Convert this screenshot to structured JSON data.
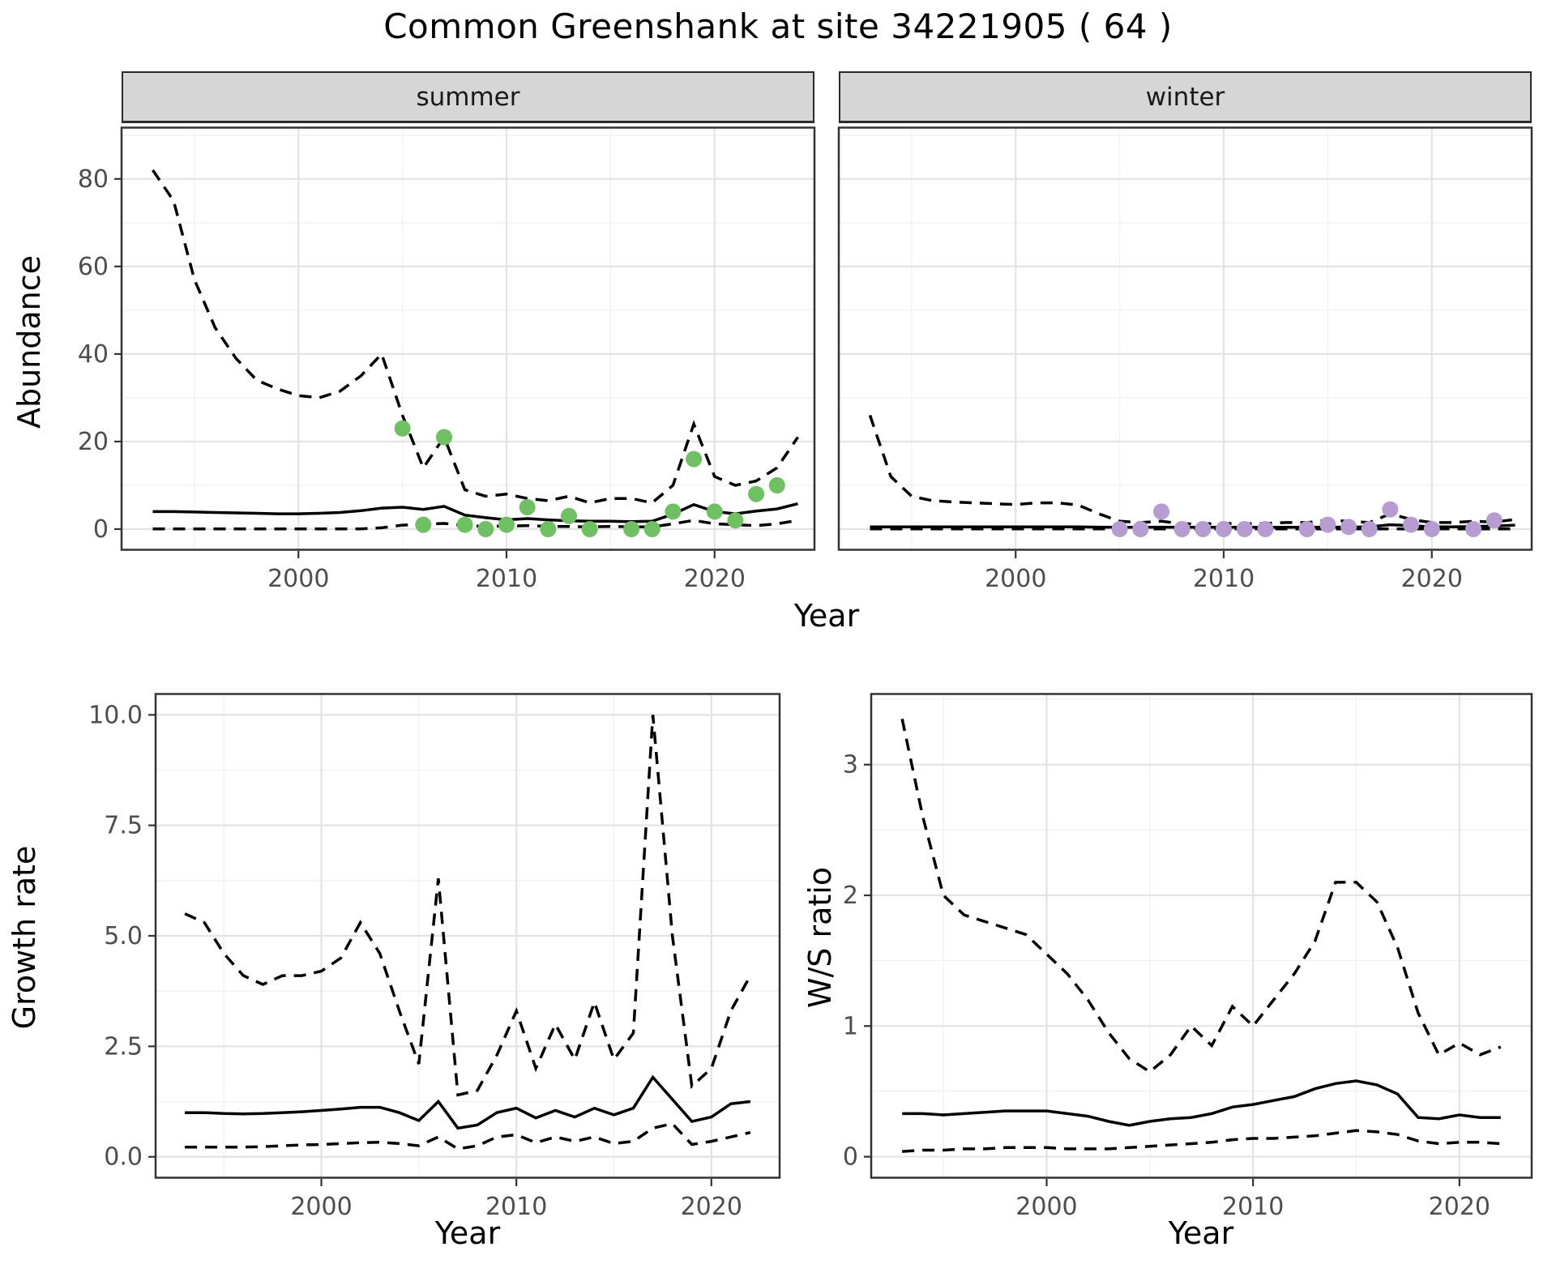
{
  "title": "Common Greenshank at site 34221905 ( 64 )",
  "colors": {
    "line": "#000000",
    "summer_points": "#6fbf63",
    "winter_points": "#b79cd1",
    "strip_bg": "#d6d6d6",
    "grid_major": "#e3e3e3",
    "grid_minor": "#f1f1f1",
    "tick_text": "#4d4d4d"
  },
  "chart_data": [
    {
      "id": "abundance-summer",
      "type": "line",
      "facet": "summer",
      "ylabel": "Abundance",
      "xlabel": "Year",
      "x_range": [
        1991.5,
        2024.8
      ],
      "y_range": [
        -5,
        92
      ],
      "x_ticks": [
        2000,
        2010,
        2020
      ],
      "x_tick_labels": [
        "2000",
        "2010",
        "2020"
      ],
      "x_minor": [
        1995,
        2005,
        2015
      ],
      "y_ticks": [
        0,
        20,
        40,
        60,
        80
      ],
      "y_tick_labels": [
        "0",
        "20",
        "40",
        "60",
        "80"
      ],
      "y_minor": [
        10,
        30,
        50,
        70,
        90
      ],
      "show_y_ticks": true,
      "years": [
        1993,
        1994,
        1995,
        1996,
        1997,
        1998,
        1999,
        2000,
        2001,
        2002,
        2003,
        2004,
        2005,
        2006,
        2007,
        2008,
        2009,
        2010,
        2011,
        2012,
        2013,
        2014,
        2015,
        2016,
        2017,
        2018,
        2019,
        2020,
        2021,
        2022,
        2023,
        2024
      ],
      "series": [
        {
          "name": "upper_95ci",
          "style": "dashed",
          "values": [
            82,
            75,
            57,
            46,
            39,
            34,
            32,
            30.5,
            30,
            31.5,
            35,
            40,
            26,
            14,
            21,
            9,
            7.5,
            8,
            7,
            6.5,
            7.5,
            6,
            7,
            7,
            6,
            10,
            24,
            12,
            10,
            11,
            14,
            21
          ]
        },
        {
          "name": "mean",
          "style": "solid",
          "values": [
            4,
            4,
            3.9,
            3.8,
            3.7,
            3.6,
            3.5,
            3.5,
            3.6,
            3.8,
            4.2,
            4.8,
            5,
            4.5,
            5.2,
            3.2,
            2.6,
            2.1,
            2.4,
            2.1,
            1.9,
            1.8,
            1.8,
            1.7,
            1.8,
            3.4,
            5.6,
            4,
            3.5,
            4.1,
            4.6,
            5.8
          ]
        },
        {
          "name": "lower_95ci",
          "style": "dashed",
          "values": [
            0.05,
            0.05,
            0.05,
            0.05,
            0.05,
            0.05,
            0.05,
            0.05,
            0.05,
            0.05,
            0.05,
            0.3,
            0.9,
            1.1,
            1.3,
            0.8,
            0.6,
            0.7,
            0.8,
            0.6,
            0.6,
            0.5,
            0.6,
            0.5,
            0.5,
            1.2,
            2,
            1.2,
            1,
            0.8,
            1.2,
            2
          ]
        }
      ],
      "points": {
        "name": "observed-counts-summer",
        "color": "#6fbf63",
        "data": [
          [
            2005,
            23
          ],
          [
            2006,
            1
          ],
          [
            2007,
            21
          ],
          [
            2008,
            1
          ],
          [
            2009,
            0
          ],
          [
            2010,
            1
          ],
          [
            2011,
            5
          ],
          [
            2012,
            0
          ],
          [
            2013,
            3
          ],
          [
            2014,
            0
          ],
          [
            2016,
            0
          ],
          [
            2017,
            0
          ],
          [
            2018,
            4
          ],
          [
            2019,
            16
          ],
          [
            2020,
            4
          ],
          [
            2021,
            2
          ],
          [
            2022,
            8
          ],
          [
            2023,
            10
          ]
        ]
      }
    },
    {
      "id": "abundance-winter",
      "type": "line",
      "facet": "winter",
      "ylabel": "Abundance",
      "xlabel": "Year",
      "x_range": [
        1991.5,
        2024.8
      ],
      "y_range": [
        -5,
        92
      ],
      "x_ticks": [
        2000,
        2010,
        2020
      ],
      "x_tick_labels": [
        "2000",
        "2010",
        "2020"
      ],
      "x_minor": [
        1995,
        2005,
        2015
      ],
      "y_ticks": [
        0,
        20,
        40,
        60,
        80
      ],
      "y_tick_labels": [
        "0",
        "20",
        "40",
        "60",
        "80"
      ],
      "y_minor": [
        10,
        30,
        50,
        70,
        90
      ],
      "show_y_ticks": false,
      "years": [
        1993,
        1994,
        1995,
        1996,
        1997,
        1998,
        1999,
        2000,
        2001,
        2002,
        2003,
        2004,
        2005,
        2006,
        2007,
        2008,
        2009,
        2010,
        2011,
        2012,
        2013,
        2014,
        2015,
        2016,
        2017,
        2018,
        2019,
        2020,
        2021,
        2022,
        2023,
        2024
      ],
      "series": [
        {
          "name": "upper_95ci",
          "style": "dashed",
          "values": [
            26,
            12,
            7.5,
            6.5,
            6.2,
            6,
            5.8,
            5.6,
            6,
            6,
            5.5,
            3.5,
            1.8,
            1.5,
            1.8,
            1.2,
            1.2,
            1.3,
            1.2,
            1.3,
            1.5,
            1.5,
            2,
            1.8,
            1.5,
            3.5,
            2.2,
            1.5,
            1.5,
            1.8,
            1.6,
            2.2
          ]
        },
        {
          "name": "mean",
          "style": "solid",
          "values": [
            0.5,
            0.5,
            0.5,
            0.5,
            0.5,
            0.5,
            0.5,
            0.5,
            0.5,
            0.5,
            0.5,
            0.45,
            0.4,
            0.4,
            0.45,
            0.4,
            0.4,
            0.4,
            0.4,
            0.4,
            0.4,
            0.4,
            0.45,
            0.45,
            0.5,
            1,
            0.8,
            0.5,
            0.5,
            0.6,
            0.7,
            0.9
          ]
        },
        {
          "name": "lower_95ci",
          "style": "dashed",
          "values": [
            0.05,
            0.05,
            0.05,
            0.05,
            0.05,
            0.05,
            0.05,
            0.05,
            0.05,
            0.05,
            0.05,
            0.05,
            0.05,
            0.05,
            0.05,
            0.05,
            0.05,
            0.05,
            0.05,
            0.05,
            0.05,
            0.05,
            0.05,
            0.05,
            0.05,
            0.05,
            0.05,
            0.05,
            0.05,
            0.05,
            0.05,
            0.05
          ]
        }
      ],
      "points": {
        "name": "observed-counts-winter",
        "color": "#b79cd1",
        "data": [
          [
            2005,
            0
          ],
          [
            2006,
            0
          ],
          [
            2007,
            4
          ],
          [
            2008,
            0
          ],
          [
            2009,
            0
          ],
          [
            2010,
            0
          ],
          [
            2011,
            0
          ],
          [
            2012,
            0
          ],
          [
            2014,
            0
          ],
          [
            2015,
            1
          ],
          [
            2016,
            0.5
          ],
          [
            2017,
            0
          ],
          [
            2018,
            4.5
          ],
          [
            2019,
            1
          ],
          [
            2020,
            0
          ],
          [
            2022,
            0
          ],
          [
            2023,
            2
          ]
        ]
      }
    },
    {
      "id": "growth-rate",
      "type": "line",
      "facet": null,
      "ylabel": "Growth rate",
      "xlabel": "Year",
      "x_range": [
        1991.5,
        2023.5
      ],
      "y_range": [
        -0.5,
        10.5
      ],
      "x_ticks": [
        2000,
        2010,
        2020
      ],
      "x_tick_labels": [
        "2000",
        "2010",
        "2020"
      ],
      "x_minor": [
        1995,
        2005,
        2015
      ],
      "y_ticks": [
        0,
        2.5,
        5,
        7.5,
        10
      ],
      "y_tick_labels": [
        "0.0",
        "2.5",
        "5.0",
        "7.5",
        "10.0"
      ],
      "y_minor": [
        1.25,
        3.75,
        6.25,
        8.75
      ],
      "show_y_ticks": true,
      "years": [
        1993,
        1994,
        1995,
        1996,
        1997,
        1998,
        1999,
        2000,
        2001,
        2002,
        2003,
        2004,
        2005,
        2006,
        2007,
        2008,
        2009,
        2010,
        2011,
        2012,
        2013,
        2014,
        2015,
        2016,
        2017,
        2018,
        2019,
        2020,
        2021,
        2022
      ],
      "series": [
        {
          "name": "upper_95ci",
          "style": "dashed",
          "values": [
            5.5,
            5.3,
            4.6,
            4.1,
            3.9,
            4.1,
            4.1,
            4.2,
            4.5,
            5.3,
            4.6,
            3.3,
            2.1,
            6.3,
            1.4,
            1.5,
            2.3,
            3.3,
            2,
            3,
            2.2,
            3.5,
            2.2,
            2.8,
            10,
            5,
            1.6,
            2,
            3.3,
            4.1
          ]
        },
        {
          "name": "mean",
          "style": "solid",
          "values": [
            1,
            1,
            0.98,
            0.97,
            0.98,
            1,
            1.02,
            1.05,
            1.08,
            1.12,
            1.12,
            1,
            0.82,
            1.25,
            0.65,
            0.72,
            1,
            1.1,
            0.88,
            1.05,
            0.9,
            1.1,
            0.95,
            1.1,
            1.8,
            1.3,
            0.8,
            0.9,
            1.2,
            1.25
          ]
        },
        {
          "name": "lower_95ci",
          "style": "dashed",
          "values": [
            0.22,
            0.22,
            0.22,
            0.22,
            0.23,
            0.25,
            0.27,
            0.28,
            0.3,
            0.32,
            0.33,
            0.3,
            0.25,
            0.45,
            0.18,
            0.25,
            0.45,
            0.5,
            0.32,
            0.45,
            0.35,
            0.45,
            0.3,
            0.35,
            0.65,
            0.75,
            0.28,
            0.35,
            0.45,
            0.55
          ]
        }
      ],
      "points": null
    },
    {
      "id": "ws-ratio",
      "type": "line",
      "facet": null,
      "ylabel": "W/S ratio",
      "xlabel": "Year",
      "x_range": [
        1991.5,
        2023.5
      ],
      "y_range": [
        -0.17,
        3.55
      ],
      "x_ticks": [
        2000,
        2010,
        2020
      ],
      "x_tick_labels": [
        "2000",
        "2010",
        "2020"
      ],
      "x_minor": [
        1995,
        2005,
        2015
      ],
      "y_ticks": [
        0,
        1,
        2,
        3
      ],
      "y_tick_labels": [
        "0",
        "1",
        "2",
        "3"
      ],
      "y_minor": [
        0.5,
        1.5,
        2.5,
        3.5
      ],
      "show_y_ticks": true,
      "years": [
        1993,
        1994,
        1995,
        1996,
        1997,
        1998,
        1999,
        2000,
        2001,
        2002,
        2003,
        2004,
        2005,
        2006,
        2007,
        2008,
        2009,
        2010,
        2011,
        2012,
        2013,
        2014,
        2015,
        2016,
        2017,
        2018,
        2019,
        2020,
        2021,
        2022
      ],
      "series": [
        {
          "name": "upper_95ci",
          "style": "dashed",
          "values": [
            3.35,
            2.6,
            2,
            1.85,
            1.8,
            1.75,
            1.7,
            1.55,
            1.4,
            1.2,
            0.95,
            0.75,
            0.65,
            0.78,
            1,
            0.85,
            1.15,
            1,
            1.2,
            1.4,
            1.65,
            2.1,
            2.1,
            1.95,
            1.6,
            1.1,
            0.78,
            0.87,
            0.78,
            0.84
          ]
        },
        {
          "name": "mean",
          "style": "solid",
          "values": [
            0.33,
            0.33,
            0.32,
            0.33,
            0.34,
            0.35,
            0.35,
            0.35,
            0.33,
            0.31,
            0.27,
            0.24,
            0.27,
            0.29,
            0.3,
            0.33,
            0.38,
            0.4,
            0.43,
            0.46,
            0.52,
            0.56,
            0.58,
            0.55,
            0.48,
            0.3,
            0.29,
            0.32,
            0.3,
            0.3
          ]
        },
        {
          "name": "lower_95ci",
          "style": "dashed",
          "values": [
            0.04,
            0.05,
            0.05,
            0.06,
            0.06,
            0.07,
            0.07,
            0.07,
            0.06,
            0.06,
            0.06,
            0.07,
            0.08,
            0.09,
            0.1,
            0.11,
            0.13,
            0.14,
            0.14,
            0.15,
            0.16,
            0.18,
            0.2,
            0.19,
            0.17,
            0.12,
            0.1,
            0.11,
            0.11,
            0.1
          ]
        }
      ],
      "points": null
    }
  ]
}
